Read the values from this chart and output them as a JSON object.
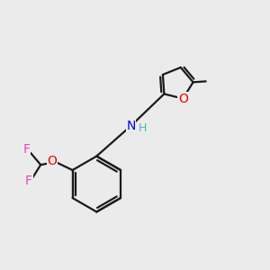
{
  "bg_color": "#ebebeb",
  "bond_color": "#1a1a1a",
  "N_color": "#0000ee",
  "O_color": "#ee0000",
  "F_color": "#ee44bb",
  "H_color": "#44bbaa",
  "line_width": 1.6,
  "dbo": 0.055,
  "xlim": [
    0,
    10
  ],
  "ylim": [
    0,
    10
  ]
}
